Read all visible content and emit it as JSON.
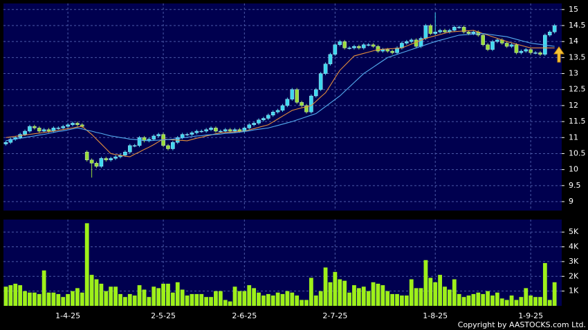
{
  "chart_data": [
    {
      "type": "candlestick",
      "categories": [
        null,
        null,
        null,
        null,
        null,
        null,
        null,
        null,
        null,
        null,
        null,
        null,
        null,
        "1-4-25",
        null,
        null,
        null,
        null,
        null,
        null,
        null,
        null,
        null,
        null,
        null,
        null,
        null,
        null,
        null,
        null,
        null,
        null,
        null,
        "2-5-25",
        null,
        null,
        null,
        null,
        null,
        null,
        null,
        null,
        null,
        null,
        null,
        null,
        null,
        null,
        null,
        null,
        "2-6-25",
        null,
        null,
        null,
        null,
        null,
        null,
        null,
        null,
        null,
        null,
        null,
        null,
        null,
        null,
        null,
        null,
        null,
        null,
        "2-7-25",
        null,
        null,
        null,
        null,
        null,
        null,
        null,
        null,
        null,
        null,
        null,
        null,
        null,
        null,
        null,
        null,
        null,
        null,
        null,
        null,
        "1-8-25",
        null,
        null,
        null,
        null,
        null,
        null,
        null,
        null,
        null,
        null,
        null,
        null,
        null,
        null,
        null,
        null,
        null,
        null,
        null,
        "1-9-25",
        null,
        null,
        null,
        null,
        null
      ],
      "open": [
        10.8,
        10.85,
        10.95,
        11.0,
        11.1,
        11.2,
        11.35,
        11.3,
        11.2,
        11.25,
        11.2,
        11.3,
        11.3,
        11.35,
        11.4,
        11.45,
        11.4,
        10.55,
        10.3,
        10.2,
        10.1,
        10.35,
        10.3,
        10.35,
        10.4,
        10.45,
        10.55,
        10.75,
        10.75,
        11.0,
        10.9,
        10.95,
        11.05,
        11.1,
        10.75,
        10.65,
        10.85,
        11.0,
        11.1,
        11.1,
        11.15,
        11.2,
        11.2,
        11.25,
        11.3,
        11.2,
        11.2,
        11.25,
        11.2,
        11.25,
        11.2,
        11.3,
        11.4,
        11.45,
        11.55,
        11.6,
        11.7,
        11.8,
        11.85,
        12.0,
        12.2,
        12.5,
        12.1,
        12.0,
        11.8,
        12.3,
        12.5,
        13.0,
        13.3,
        13.6,
        13.9,
        14.0,
        13.8,
        13.8,
        13.85,
        13.8,
        13.9,
        13.9,
        13.85,
        13.7,
        13.75,
        13.7,
        13.65,
        13.8,
        13.95,
        14.0,
        14.05,
        13.85,
        14.1,
        14.5,
        14.25,
        14.3,
        14.35,
        14.3,
        14.35,
        14.45,
        14.45,
        14.3,
        14.25,
        14.3,
        14.2,
        13.9,
        13.75,
        14.0,
        14.05,
        13.95,
        13.85,
        13.9,
        13.65,
        13.7,
        13.75,
        13.65,
        13.65,
        13.6,
        14.2,
        14.3
      ],
      "high": [
        10.9,
        11.0,
        11.05,
        11.15,
        11.25,
        11.4,
        11.4,
        11.35,
        11.3,
        11.3,
        11.35,
        11.35,
        11.4,
        11.45,
        11.5,
        11.5,
        11.45,
        10.6,
        10.35,
        10.25,
        10.4,
        10.4,
        10.4,
        10.45,
        10.5,
        10.6,
        10.8,
        10.8,
        11.05,
        11.05,
        11.0,
        11.1,
        11.15,
        11.15,
        10.8,
        10.9,
        11.05,
        11.15,
        11.15,
        11.2,
        11.25,
        11.25,
        11.3,
        11.35,
        11.35,
        11.25,
        11.3,
        11.3,
        11.3,
        11.3,
        11.35,
        11.45,
        11.5,
        11.6,
        11.65,
        11.75,
        11.85,
        11.9,
        12.05,
        12.25,
        12.55,
        12.55,
        12.15,
        12.05,
        12.35,
        12.55,
        13.05,
        13.35,
        13.65,
        13.95,
        14.05,
        14.05,
        13.85,
        13.9,
        13.9,
        13.95,
        13.95,
        13.95,
        13.9,
        13.8,
        13.8,
        13.75,
        13.85,
        14.0,
        14.05,
        14.1,
        14.1,
        14.15,
        14.55,
        14.55,
        14.9,
        14.4,
        14.4,
        14.4,
        14.5,
        14.5,
        14.5,
        14.35,
        14.35,
        14.35,
        14.25,
        13.95,
        14.05,
        14.1,
        14.1,
        14.0,
        13.95,
        13.95,
        13.75,
        13.8,
        13.8,
        13.7,
        13.7,
        14.25,
        14.35,
        14.55
      ],
      "low": [
        10.75,
        10.8,
        10.9,
        10.95,
        11.05,
        11.15,
        11.25,
        11.15,
        11.15,
        11.15,
        11.15,
        11.25,
        11.25,
        11.3,
        11.35,
        11.35,
        11.3,
        10.25,
        9.75,
        10.05,
        10.05,
        10.25,
        10.25,
        10.3,
        10.35,
        10.4,
        10.5,
        10.7,
        10.7,
        10.85,
        10.85,
        10.9,
        11.0,
        10.7,
        10.6,
        10.6,
        10.8,
        10.95,
        11.05,
        11.05,
        11.1,
        11.15,
        11.15,
        11.2,
        11.15,
        11.15,
        11.15,
        11.15,
        11.15,
        11.15,
        11.15,
        11.25,
        11.35,
        11.4,
        11.5,
        11.55,
        11.65,
        11.75,
        11.8,
        11.95,
        12.15,
        12.05,
        11.95,
        11.75,
        11.75,
        12.25,
        12.45,
        12.95,
        13.25,
        13.55,
        13.85,
        13.75,
        13.75,
        13.75,
        13.75,
        13.75,
        13.85,
        13.8,
        13.65,
        13.65,
        13.65,
        13.6,
        13.6,
        13.75,
        13.9,
        13.95,
        13.8,
        13.8,
        14.05,
        14.2,
        14.2,
        14.25,
        14.25,
        14.25,
        14.3,
        14.4,
        14.25,
        14.2,
        14.2,
        14.15,
        13.85,
        13.7,
        13.7,
        13.95,
        13.9,
        13.8,
        13.8,
        13.6,
        13.6,
        13.65,
        13.6,
        13.6,
        13.55,
        13.55,
        14.15,
        14.25
      ],
      "close": [
        10.85,
        10.95,
        11.0,
        11.1,
        11.2,
        11.35,
        11.3,
        11.2,
        11.25,
        11.2,
        11.3,
        11.3,
        11.35,
        11.4,
        11.45,
        11.4,
        11.35,
        10.3,
        10.2,
        10.1,
        10.35,
        10.3,
        10.35,
        10.4,
        10.45,
        10.55,
        10.75,
        10.75,
        11.0,
        10.9,
        10.95,
        11.05,
        11.1,
        10.75,
        10.65,
        10.85,
        11.0,
        11.1,
        11.1,
        11.15,
        11.2,
        11.2,
        11.25,
        11.3,
        11.2,
        11.2,
        11.25,
        11.2,
        11.25,
        11.2,
        11.3,
        11.4,
        11.45,
        11.55,
        11.6,
        11.7,
        11.8,
        11.85,
        12.0,
        12.2,
        12.5,
        12.1,
        12.0,
        11.8,
        12.3,
        12.5,
        13.0,
        13.3,
        13.6,
        13.9,
        14.0,
        13.8,
        13.8,
        13.85,
        13.8,
        13.9,
        13.9,
        13.85,
        13.7,
        13.75,
        13.7,
        13.65,
        13.8,
        13.95,
        14.0,
        14.05,
        13.85,
        14.1,
        14.5,
        14.25,
        14.3,
        14.35,
        14.3,
        14.35,
        14.45,
        14.45,
        14.3,
        14.25,
        14.3,
        14.2,
        13.9,
        13.75,
        14.0,
        14.05,
        13.95,
        13.85,
        13.9,
        13.65,
        13.7,
        13.75,
        13.65,
        13.65,
        13.6,
        14.2,
        14.3,
        14.5
      ],
      "up_color": "#3fd8ef",
      "down_color": "#9bdc3a",
      "series": [
        {
          "color": "#e58f3c",
          "values": [
            11.0,
            11.02,
            11.04,
            11.06,
            11.08,
            11.1,
            11.12,
            11.14,
            11.16,
            11.18,
            11.2,
            11.23,
            11.25,
            11.28,
            11.3,
            11.33,
            11.35,
            11.22,
            11.1,
            10.95,
            10.8,
            10.65,
            10.5,
            10.47,
            10.45,
            10.42,
            10.4,
            10.48,
            10.55,
            10.63,
            10.7,
            10.78,
            10.87,
            10.95,
            10.94,
            10.93,
            10.92,
            10.91,
            10.9,
            10.94,
            10.98,
            11.01,
            11.05,
            11.08,
            11.12,
            11.15,
            11.16,
            11.17,
            11.18,
            11.19,
            11.2,
            11.24,
            11.28,
            11.32,
            11.36,
            11.4,
            11.49,
            11.58,
            11.67,
            11.76,
            11.85,
            11.89,
            11.93,
            11.96,
            12.0,
            12.13,
            12.27,
            12.4,
            12.63,
            12.87,
            13.1,
            13.25,
            13.4,
            13.55,
            13.59,
            13.63,
            13.67,
            13.71,
            13.75,
            13.76,
            13.77,
            13.78,
            13.79,
            13.8,
            13.86,
            13.92,
            13.98,
            14.04,
            14.1,
            14.14,
            14.18,
            14.22,
            14.26,
            14.3,
            14.31,
            14.32,
            14.33,
            14.34,
            14.35,
            14.3,
            14.25,
            14.2,
            14.15,
            14.1,
            14.05,
            14.0,
            13.96,
            13.92,
            13.88,
            13.84,
            13.8,
            13.8,
            13.8,
            13.8,
            13.8,
            13.8
          ]
        },
        {
          "color": "#55aef0",
          "values": [
            10.9,
            10.93,
            10.95,
            10.98,
            11.0,
            11.03,
            11.05,
            11.08,
            11.1,
            11.13,
            11.16,
            11.19,
            11.21,
            11.24,
            11.27,
            11.3,
            11.27,
            11.23,
            11.2,
            11.16,
            11.13,
            11.09,
            11.05,
            11.03,
            11.0,
            10.98,
            10.95,
            10.94,
            10.93,
            10.91,
            10.9,
            10.91,
            10.92,
            10.93,
            10.94,
            10.95,
            10.97,
            10.99,
            11.01,
            11.03,
            11.05,
            11.06,
            11.08,
            11.09,
            11.1,
            11.11,
            11.13,
            11.14,
            11.15,
            11.17,
            11.19,
            11.21,
            11.24,
            11.26,
            11.28,
            11.3,
            11.34,
            11.38,
            11.42,
            11.46,
            11.5,
            11.55,
            11.6,
            11.65,
            11.7,
            11.75,
            11.86,
            11.97,
            12.08,
            12.19,
            12.3,
            12.44,
            12.58,
            12.72,
            12.86,
            13.0,
            13.1,
            13.2,
            13.3,
            13.4,
            13.5,
            13.55,
            13.6,
            13.65,
            13.7,
            13.75,
            13.8,
            13.85,
            13.9,
            13.95,
            14.0,
            14.04,
            14.08,
            14.12,
            14.16,
            14.2,
            14.21,
            14.22,
            14.23,
            14.24,
            14.25,
            14.23,
            14.21,
            14.19,
            14.17,
            14.15,
            14.11,
            14.07,
            14.03,
            13.99,
            13.95,
            13.93,
            13.91,
            13.89,
            13.87,
            13.85
          ]
        }
      ],
      "ylim": [
        8.72,
        15.19
      ],
      "yticks": [
        9,
        9.5,
        10,
        10.5,
        11,
        11.5,
        12,
        12.5,
        13,
        13.5,
        14,
        14.5,
        15
      ],
      "grid": true
    },
    {
      "type": "bar",
      "values": [
        1300,
        1400,
        1500,
        1400,
        1000,
        900,
        900,
        800,
        2400,
        900,
        900,
        800,
        600,
        800,
        1000,
        1200,
        900,
        5600,
        2100,
        1800,
        1500,
        1000,
        1300,
        1300,
        800,
        600,
        800,
        700,
        1400,
        1100,
        600,
        1300,
        1200,
        1500,
        1500,
        900,
        1600,
        1100,
        700,
        800,
        800,
        800,
        600,
        600,
        1000,
        1000,
        400,
        300,
        1300,
        1000,
        1000,
        1400,
        1200,
        900,
        700,
        800,
        700,
        900,
        800,
        1000,
        900,
        700,
        400,
        400,
        1900,
        700,
        1000,
        2600,
        1600,
        2300,
        1800,
        1700,
        900,
        1400,
        1200,
        1300,
        1000,
        1600,
        1500,
        1400,
        1000,
        800,
        800,
        700,
        700,
        1800,
        1200,
        1200,
        3100,
        1900,
        1600,
        2100,
        1300,
        1100,
        1800,
        800,
        600,
        700,
        800,
        900,
        800,
        1000,
        700,
        900,
        500,
        400,
        700,
        400,
        600,
        1200,
        700,
        600,
        600,
        2900,
        400,
        1600
      ],
      "color": "#9ef01a",
      "ylim": [
        0,
        5850
      ],
      "yticks": [
        {
          "value": 1000,
          "label": "1K"
        },
        {
          "value": 2000,
          "label": "2K"
        },
        {
          "value": 3000,
          "label": "3K"
        },
        {
          "value": 4000,
          "label": "4K"
        },
        {
          "value": 5000,
          "label": "5K"
        }
      ],
      "grid": true
    }
  ],
  "footer": "Copyright by AASTOCKS.com Ltd."
}
